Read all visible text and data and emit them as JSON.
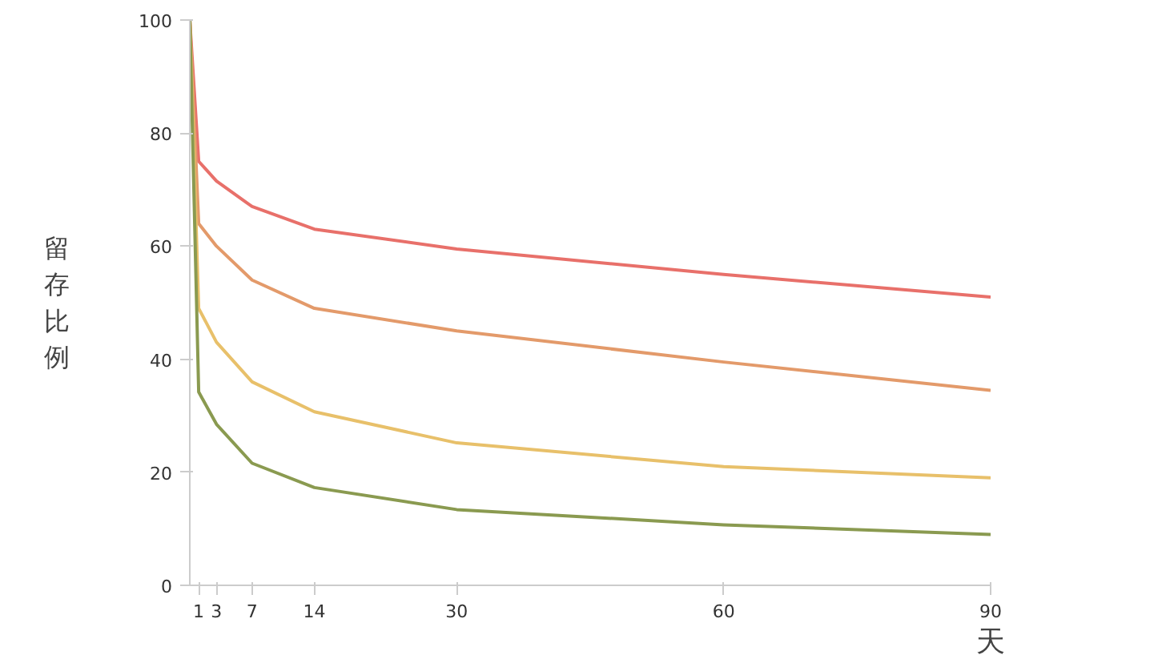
{
  "chart_data": {
    "type": "line",
    "ylabel": "留存比例",
    "xlabel": "天",
    "x": [
      0,
      1,
      3,
      7,
      14,
      30,
      60,
      90
    ],
    "series": [
      {
        "color": "#e8706a",
        "values": [
          100,
          75,
          71.5,
          67,
          63,
          59.5,
          55,
          51
        ]
      },
      {
        "color": "#e39a6a",
        "values": [
          100,
          64,
          60,
          54,
          49,
          45,
          39.5,
          34.5
        ]
      },
      {
        "color": "#e8c06a",
        "values": [
          100,
          49,
          43,
          36,
          30.7,
          25.2,
          21,
          19
        ]
      },
      {
        "color": "#8a9a50",
        "values": [
          100,
          34.2,
          28.5,
          21.6,
          17.3,
          13.4,
          10.7,
          9
        ]
      }
    ],
    "xlim": [
      0,
      90
    ],
    "ylim": [
      0,
      100
    ],
    "xticks": [
      1,
      3,
      7,
      14,
      30,
      60,
      90
    ],
    "yticks": [
      0,
      20,
      40,
      60,
      80,
      100
    ],
    "grid": false,
    "marker": "none",
    "line_style": "solid"
  }
}
